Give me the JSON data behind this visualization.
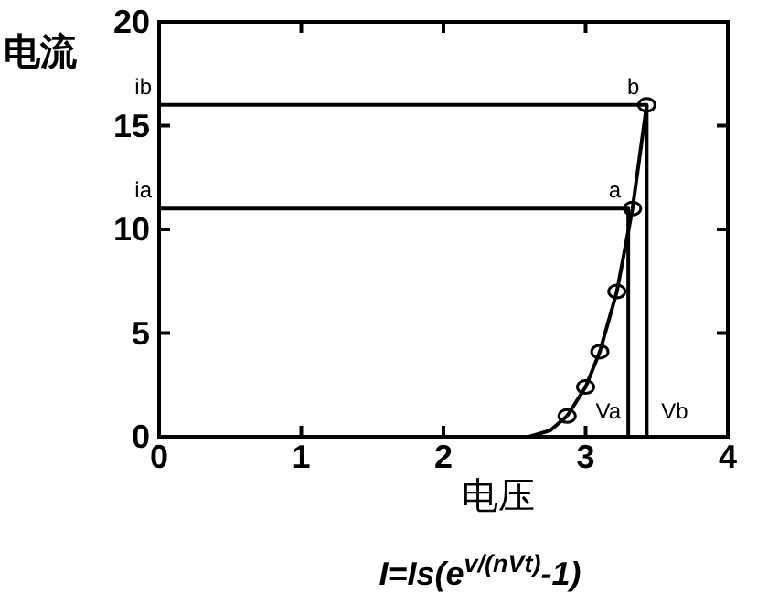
{
  "chart_data": {
    "type": "line",
    "xlabel": "电压",
    "ylabel": "电流",
    "xlim": [
      0,
      4
    ],
    "ylim": [
      0,
      20
    ],
    "xticks": [
      0,
      1,
      2,
      3,
      4
    ],
    "yticks": [
      0,
      5,
      10,
      15,
      20
    ],
    "grid": false,
    "line_style": "solid",
    "series": [
      {
        "marker": "none",
        "color": "#000000",
        "x": [
          2.6,
          2.75,
          2.87
        ],
        "values": [
          0,
          0.3,
          1
        ]
      },
      {
        "marker": "circle",
        "color": "#000000",
        "x": [
          2.87,
          3.0,
          3.1,
          3.22,
          3.33,
          3.43
        ],
        "values": [
          1,
          2.4,
          4.1,
          7,
          11,
          16
        ]
      },
      {
        "marker": "none",
        "color": "#000000",
        "x": [
          0,
          3.3,
          3.3
        ],
        "values": [
          11,
          11,
          0
        ]
      },
      {
        "marker": "none",
        "color": "#000000",
        "x": [
          0,
          3.43,
          3.43
        ],
        "values": [
          16,
          16,
          0
        ]
      }
    ],
    "annotations": [
      {
        "text": "a",
        "x": 3.3,
        "y": 11
      },
      {
        "text": "b",
        "x": 3.43,
        "y": 16
      },
      {
        "text": "ia",
        "x": 0,
        "y": 11
      },
      {
        "text": "ib",
        "x": 0,
        "y": 16
      },
      {
        "text": "Va",
        "x": 3.3,
        "y": 0
      },
      {
        "text": "Vb",
        "x": 3.43,
        "y": 0
      },
      "I=Is(e$^{v/(nVt)}$-1)"
    ]
  }
}
